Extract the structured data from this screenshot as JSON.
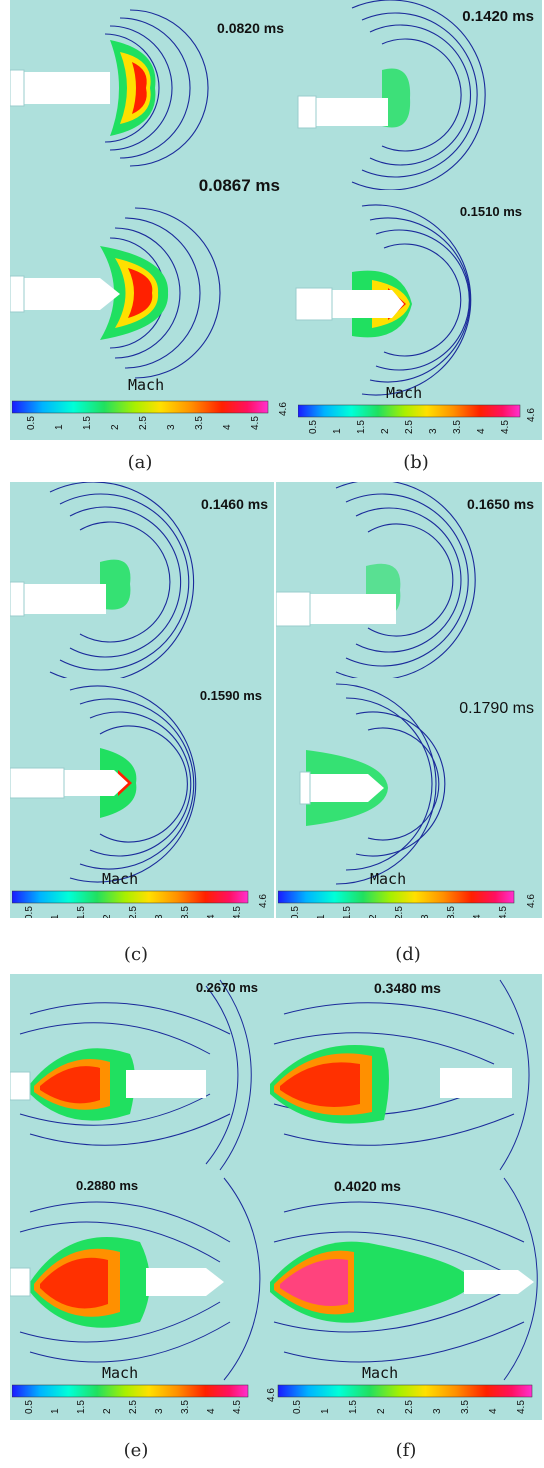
{
  "colorbar": {
    "colors": [
      "#1a1aff",
      "#00b4ff",
      "#00ffd8",
      "#20e060",
      "#a8f000",
      "#ffe000",
      "#ff9000",
      "#ff2000",
      "#ff1060",
      "#ff30d0"
    ],
    "ticks": [
      "0.5",
      "1",
      "1.5",
      "2",
      "2.5",
      "3",
      "3.5",
      "4",
      "4.5"
    ],
    "max_label": "4.6",
    "title": "Mach"
  },
  "panels": [
    {
      "caption": "(a)",
      "times": [
        "0.0820 ms",
        "0.0867 ms"
      ]
    },
    {
      "caption": "(b)",
      "times": [
        "0.1420 ms",
        "0.1510 ms"
      ]
    },
    {
      "caption": "(c)",
      "times": [
        "0.1460 ms",
        "0.1590 ms"
      ]
    },
    {
      "caption": "(d)",
      "times": [
        "0.1650 ms",
        "0.1790 ms"
      ]
    },
    {
      "caption": "(e)",
      "times": [
        "0.2670 ms",
        "0.2880 ms"
      ]
    },
    {
      "caption": "(f)",
      "times": [
        "0.3480 ms",
        "0.4020 ms"
      ]
    }
  ]
}
